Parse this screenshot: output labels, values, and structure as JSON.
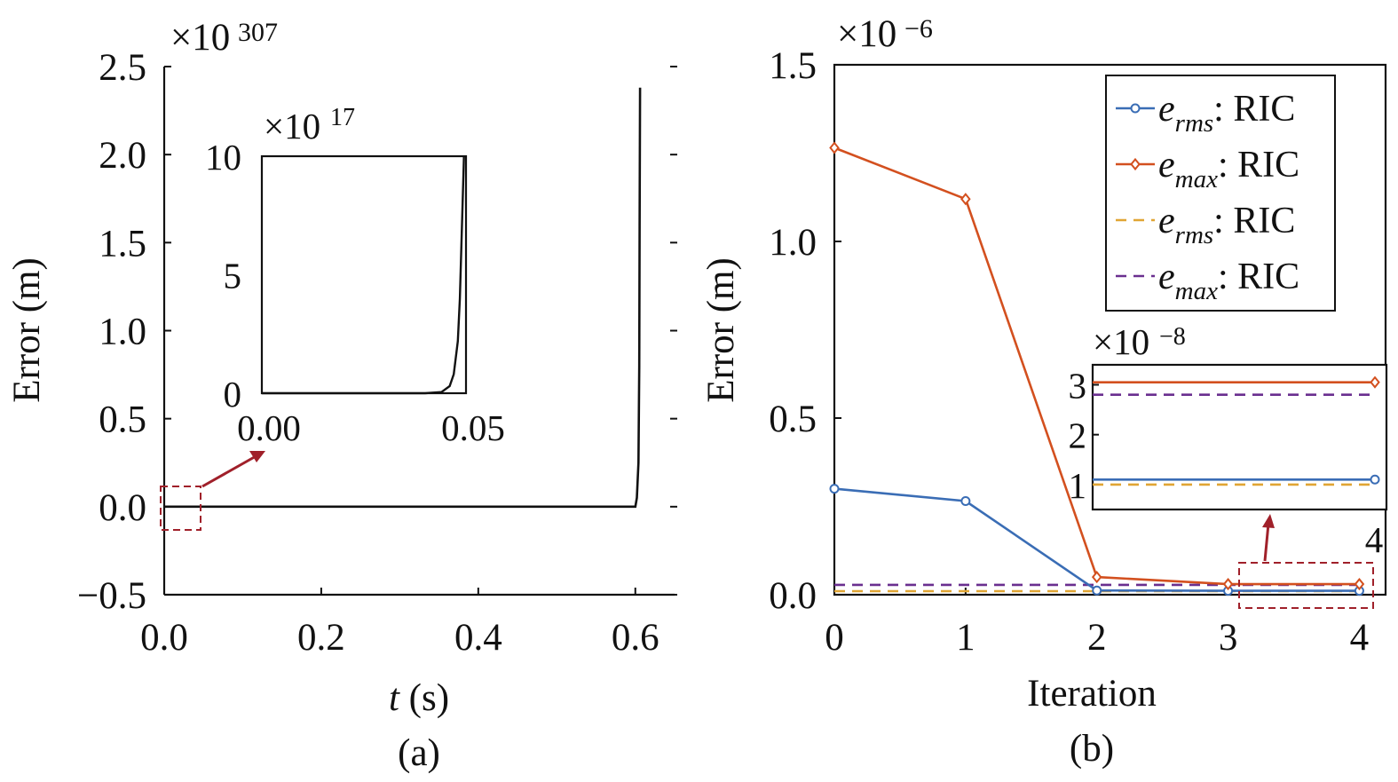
{
  "chart_data": [
    {
      "type": "line",
      "panel_label": "(a)",
      "xlabel_var": "t",
      "xlabel_unit": " (s)",
      "ylabel": "Error (m)",
      "exponent_base": "×10",
      "exponent_power": "307",
      "xlim": [
        0.0,
        0.65
      ],
      "ylim": [
        -0.5,
        2.5
      ],
      "xticks": [
        "0.0",
        "0.2",
        "0.4",
        "0.6"
      ],
      "yticks": [
        "−0.5",
        "0.0",
        "0.5",
        "1.0",
        "1.5",
        "2.0",
        "2.5"
      ],
      "series": [
        {
          "color": "#111111",
          "x": [
            0.0,
            0.59,
            0.6,
            0.602,
            0.604,
            0.605,
            0.6055,
            0.606
          ],
          "y": [
            0.0,
            0.0,
            0.0,
            0.05,
            0.25,
            0.8,
            1.6,
            2.38
          ]
        }
      ],
      "inset": {
        "exponent_base": "×10",
        "exponent_power": "17",
        "xlim": [
          0.0,
          0.05
        ],
        "ylim": [
          0,
          10
        ],
        "xticks": [
          "0.00",
          "0.05"
        ],
        "yticks": [
          "0",
          "5",
          "10"
        ],
        "series": [
          {
            "color": "#111111",
            "x": [
              0.0,
              0.04,
              0.044,
              0.046,
              0.047,
              0.048,
              0.0485,
              0.049,
              0.0495
            ],
            "y": [
              0.0,
              0.0,
              0.05,
              0.3,
              0.8,
              2.2,
              4.0,
              7.0,
              10.0
            ]
          }
        ]
      },
      "annotation": {
        "box_color": "#a0202a",
        "arrow_color": "#a0202a"
      }
    },
    {
      "type": "line",
      "panel_label": "(b)",
      "xlabel": "Iteration",
      "ylabel": "Error (m)",
      "exponent_base": "×10",
      "exponent_power": "−6",
      "xlim": [
        0,
        4.2
      ],
      "ylim": [
        0.0,
        1.5
      ],
      "xticks": [
        "0",
        "1",
        "2",
        "3",
        "4"
      ],
      "yticks": [
        "0.0",
        "0.5",
        "1.0",
        "1.5"
      ],
      "categories": [
        0,
        1,
        2,
        3,
        4
      ],
      "series": [
        {
          "name_sym": "e",
          "name_sub": "rms",
          "name_suffix": ": RIC",
          "color": "#3a6db5",
          "style": "solid-circle",
          "values": [
            0.3,
            0.265,
            0.012,
            0.011,
            0.011
          ]
        },
        {
          "name_sym": "e",
          "name_sub": "max",
          "name_suffix": ": RIC",
          "color": "#d3501f",
          "style": "solid-diamond",
          "values": [
            1.265,
            1.12,
            0.05,
            0.03,
            0.03
          ]
        },
        {
          "name_sym": "e",
          "name_sub": "rms",
          "name_suffix": ": RIC",
          "color": "#e0a534",
          "style": "dashed",
          "values": [
            0.01,
            0.01,
            0.01,
            0.01,
            0.01
          ]
        },
        {
          "name_sym": "e",
          "name_sub": "max",
          "name_suffix": ": RIC",
          "color": "#6a2f8f",
          "style": "dashed",
          "values": [
            0.028,
            0.028,
            0.028,
            0.028,
            0.028
          ]
        }
      ],
      "inset": {
        "exponent_base": "×10",
        "exponent_power": "−8",
        "xtick": "4",
        "yticks": [
          "1",
          "2",
          "3"
        ],
        "ylim": [
          0.5,
          3.4
        ],
        "values": {
          "e_rms_ric_solid": 1.1,
          "e_max_ric_solid": 3.05,
          "e_rms_ric_dashed": 1.0,
          "e_max_ric_dashed": 2.8
        }
      },
      "annotation": {
        "box_color": "#a0202a",
        "arrow_color": "#a0202a"
      }
    }
  ]
}
